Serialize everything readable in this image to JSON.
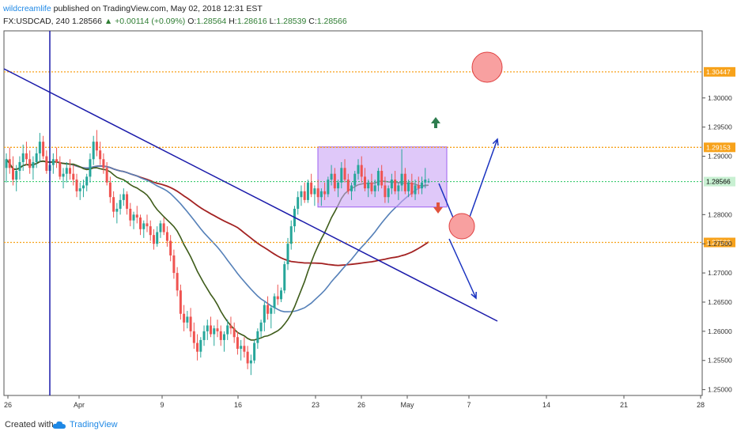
{
  "header": {
    "author": "wildcreamlife",
    "published_text": "published on TradingView.com, May 02, 2018 12:31 EST",
    "symbol": "FX:USDCAD, 240",
    "last": "1.28566",
    "change": "+0.00114 (+0.09%)",
    "ohlc": {
      "o_label": "O:",
      "o": "1.28564",
      "h_label": "H:",
      "h": "1.28616",
      "l_label": "L:",
      "l": "1.28539",
      "c_label": "C:",
      "c": "1.28566"
    }
  },
  "footer": {
    "created_with": "Created with",
    "brand": "TradingView"
  },
  "colors": {
    "bull": "#26a69a",
    "bear": "#ef5350",
    "blue_line": "#1a1aaa",
    "ma_green": "#3e5c1a",
    "ma_red": "#a32222",
    "ma_blue": "#5580b8",
    "orange": "#f7a21b",
    "price_green": "#22c55e",
    "box": "#c9a3f5",
    "circle": "#f8a0a0"
  },
  "chart_data": {
    "type": "candlestick",
    "xlabel": "",
    "ylabel": "",
    "ylim": [
      1.249,
      1.3115
    ],
    "x_ticks": [
      "26",
      "Apr",
      "9",
      "16",
      "23",
      "26",
      "May",
      "7",
      "14",
      "21",
      "28"
    ],
    "y_ticks": [
      "1.30000",
      "1.29500",
      "1.29000",
      "1.28000",
      "1.27500",
      "1.27000",
      "1.26500",
      "1.26000",
      "1.25500",
      "1.25000"
    ],
    "levels": [
      {
        "value": 1.30447,
        "label": "1.30447"
      },
      {
        "value": 1.29153,
        "label": "1.29153"
      },
      {
        "value": 1.27523,
        "label": "1.27523"
      }
    ],
    "current_price": {
      "value": 1.28566,
      "label": "1.28566"
    },
    "range_box": {
      "y_top": 1.2916,
      "y_bottom": 1.2813
    },
    "ohlc": [
      [
        1.288,
        1.2905,
        1.2855,
        1.2895
      ],
      [
        1.2895,
        1.2915,
        1.287,
        1.288
      ],
      [
        1.288,
        1.29,
        1.285,
        1.286
      ],
      [
        1.286,
        1.2885,
        1.284,
        1.2875
      ],
      [
        1.2875,
        1.29,
        1.286,
        1.289
      ],
      [
        1.289,
        1.292,
        1.2875,
        1.2905
      ],
      [
        1.2905,
        1.2925,
        1.2885,
        1.2895
      ],
      [
        1.2895,
        1.291,
        1.287,
        1.288
      ],
      [
        1.288,
        1.29,
        1.286,
        1.289
      ],
      [
        1.289,
        1.2915,
        1.288,
        1.2905
      ],
      [
        1.2905,
        1.294,
        1.289,
        1.2925
      ],
      [
        1.2925,
        1.2935,
        1.2895,
        1.29
      ],
      [
        1.29,
        1.291,
        1.287,
        1.2875
      ],
      [
        1.2875,
        1.289,
        1.2855,
        1.2885
      ],
      [
        1.2885,
        1.2905,
        1.287,
        1.2895
      ],
      [
        1.2895,
        1.2915,
        1.288,
        1.289
      ],
      [
        1.289,
        1.29,
        1.286,
        1.2865
      ],
      [
        1.2865,
        1.288,
        1.2845,
        1.287
      ],
      [
        1.287,
        1.289,
        1.2855,
        1.288
      ],
      [
        1.288,
        1.2895,
        1.286,
        1.287
      ],
      [
        1.287,
        1.2885,
        1.285,
        1.286
      ],
      [
        1.286,
        1.287,
        1.283,
        1.284
      ],
      [
        1.284,
        1.2855,
        1.2825,
        1.2845
      ],
      [
        1.2845,
        1.286,
        1.283,
        1.285
      ],
      [
        1.285,
        1.287,
        1.284,
        1.2865
      ],
      [
        1.2865,
        1.2905,
        1.2855,
        1.2895
      ],
      [
        1.2895,
        1.2935,
        1.2885,
        1.2925
      ],
      [
        1.2925,
        1.2945,
        1.29,
        1.291
      ],
      [
        1.291,
        1.2925,
        1.2885,
        1.2895
      ],
      [
        1.2895,
        1.2905,
        1.287,
        1.288
      ],
      [
        1.288,
        1.289,
        1.285,
        1.2855
      ],
      [
        1.2855,
        1.2865,
        1.282,
        1.283
      ],
      [
        1.283,
        1.284,
        1.2795,
        1.2805
      ],
      [
        1.2805,
        1.282,
        1.2785,
        1.281
      ],
      [
        1.281,
        1.2835,
        1.28,
        1.2825
      ],
      [
        1.2825,
        1.2845,
        1.2815,
        1.2835
      ],
      [
        1.2835,
        1.284,
        1.28,
        1.281
      ],
      [
        1.281,
        1.282,
        1.278,
        1.279
      ],
      [
        1.279,
        1.2805,
        1.2775,
        1.28
      ],
      [
        1.28,
        1.2815,
        1.2785,
        1.2795
      ],
      [
        1.2795,
        1.28,
        1.2765,
        1.2775
      ],
      [
        1.2775,
        1.279,
        1.276,
        1.2785
      ],
      [
        1.2785,
        1.28,
        1.277,
        1.278
      ],
      [
        1.278,
        1.279,
        1.2755,
        1.2765
      ],
      [
        1.2765,
        1.2775,
        1.274,
        1.275
      ],
      [
        1.275,
        1.278,
        1.2745,
        1.277
      ],
      [
        1.277,
        1.279,
        1.276,
        1.2785
      ],
      [
        1.2785,
        1.2795,
        1.2765,
        1.277
      ],
      [
        1.277,
        1.278,
        1.2745,
        1.2755
      ],
      [
        1.2755,
        1.2765,
        1.272,
        1.273
      ],
      [
        1.273,
        1.274,
        1.269,
        1.27
      ],
      [
        1.27,
        1.271,
        1.266,
        1.267
      ],
      [
        1.267,
        1.268,
        1.262,
        1.263
      ],
      [
        1.263,
        1.2645,
        1.26,
        1.2615
      ],
      [
        1.2615,
        1.2635,
        1.2605,
        1.2625
      ],
      [
        1.2625,
        1.264,
        1.259,
        1.26
      ],
      [
        1.26,
        1.2615,
        1.257,
        1.258
      ],
      [
        1.258,
        1.2595,
        1.255,
        1.2565
      ],
      [
        1.2565,
        1.259,
        1.2555,
        1.2585
      ],
      [
        1.2585,
        1.261,
        1.2575,
        1.26
      ],
      [
        1.26,
        1.262,
        1.2585,
        1.261
      ],
      [
        1.261,
        1.2625,
        1.259,
        1.2595
      ],
      [
        1.2595,
        1.261,
        1.2575,
        1.2605
      ],
      [
        1.2605,
        1.262,
        1.259,
        1.26
      ],
      [
        1.26,
        1.261,
        1.2575,
        1.2585
      ],
      [
        1.2585,
        1.26,
        1.2565,
        1.2595
      ],
      [
        1.2595,
        1.262,
        1.2585,
        1.261
      ],
      [
        1.261,
        1.2625,
        1.2595,
        1.2605
      ],
      [
        1.2605,
        1.2615,
        1.258,
        1.259
      ],
      [
        1.259,
        1.26,
        1.256,
        1.257
      ],
      [
        1.257,
        1.2585,
        1.255,
        1.2575
      ],
      [
        1.2575,
        1.259,
        1.2555,
        1.2565
      ],
      [
        1.2565,
        1.2575,
        1.2535,
        1.2545
      ],
      [
        1.2545,
        1.256,
        1.2525,
        1.255
      ],
      [
        1.255,
        1.2585,
        1.2545,
        1.258
      ],
      [
        1.258,
        1.2605,
        1.257,
        1.26
      ],
      [
        1.26,
        1.262,
        1.259,
        1.2615
      ],
      [
        1.2615,
        1.265,
        1.26,
        1.2645
      ],
      [
        1.2645,
        1.266,
        1.262,
        1.263
      ],
      [
        1.263,
        1.2645,
        1.2605,
        1.264
      ],
      [
        1.264,
        1.2665,
        1.263,
        1.266
      ],
      [
        1.266,
        1.268,
        1.2645,
        1.2655
      ],
      [
        1.2655,
        1.2675,
        1.265,
        1.267
      ],
      [
        1.267,
        1.272,
        1.2665,
        1.2715
      ],
      [
        1.2715,
        1.276,
        1.2705,
        1.275
      ],
      [
        1.275,
        1.279,
        1.274,
        1.278
      ],
      [
        1.278,
        1.2815,
        1.277,
        1.281
      ],
      [
        1.281,
        1.284,
        1.28,
        1.283
      ],
      [
        1.283,
        1.285,
        1.2815,
        1.284
      ],
      [
        1.284,
        1.2855,
        1.282,
        1.2825
      ],
      [
        1.2825,
        1.286,
        1.282,
        1.2855
      ],
      [
        1.2855,
        1.287,
        1.283,
        1.2835
      ],
      [
        1.2835,
        1.285,
        1.2815,
        1.2845
      ],
      [
        1.2845,
        1.286,
        1.282,
        1.283
      ],
      [
        1.283,
        1.2845,
        1.2815,
        1.284
      ],
      [
        1.284,
        1.2855,
        1.2825,
        1.2835
      ],
      [
        1.2835,
        1.2865,
        1.283,
        1.286
      ],
      [
        1.286,
        1.2885,
        1.285,
        1.287
      ],
      [
        1.287,
        1.288,
        1.284,
        1.2845
      ],
      [
        1.2845,
        1.286,
        1.283,
        1.2855
      ],
      [
        1.2855,
        1.289,
        1.2845,
        1.288
      ],
      [
        1.288,
        1.2895,
        1.2855,
        1.286
      ],
      [
        1.286,
        1.287,
        1.2835,
        1.284
      ],
      [
        1.284,
        1.2855,
        1.2825,
        1.285
      ],
      [
        1.285,
        1.2875,
        1.284,
        1.287
      ],
      [
        1.287,
        1.2895,
        1.286,
        1.2885
      ],
      [
        1.2885,
        1.29,
        1.2855,
        1.2865
      ],
      [
        1.2865,
        1.288,
        1.284,
        1.2845
      ],
      [
        1.2845,
        1.286,
        1.283,
        1.2855
      ],
      [
        1.2855,
        1.287,
        1.2835,
        1.284
      ],
      [
        1.284,
        1.286,
        1.283,
        1.285
      ],
      [
        1.285,
        1.288,
        1.284,
        1.2875
      ],
      [
        1.2875,
        1.2885,
        1.2845,
        1.285
      ],
      [
        1.285,
        1.2865,
        1.282,
        1.283
      ],
      [
        1.283,
        1.285,
        1.282,
        1.2845
      ],
      [
        1.2845,
        1.287,
        1.2835,
        1.286
      ],
      [
        1.286,
        1.2875,
        1.2835,
        1.284
      ],
      [
        1.284,
        1.2855,
        1.2825,
        1.285
      ],
      [
        1.285,
        1.2912,
        1.284,
        1.287
      ],
      [
        1.287,
        1.288,
        1.2835,
        1.284
      ],
      [
        1.284,
        1.286,
        1.283,
        1.2855
      ],
      [
        1.2855,
        1.287,
        1.283,
        1.2835
      ],
      [
        1.2835,
        1.286,
        1.2825,
        1.285
      ],
      [
        1.285,
        1.2865,
        1.2835,
        1.2845
      ],
      [
        1.2845,
        1.2865,
        1.2835,
        1.2855
      ],
      [
        1.2855,
        1.288,
        1.2845,
        1.286
      ],
      [
        1.2856,
        1.2862,
        1.2854,
        1.2857
      ]
    ]
  }
}
